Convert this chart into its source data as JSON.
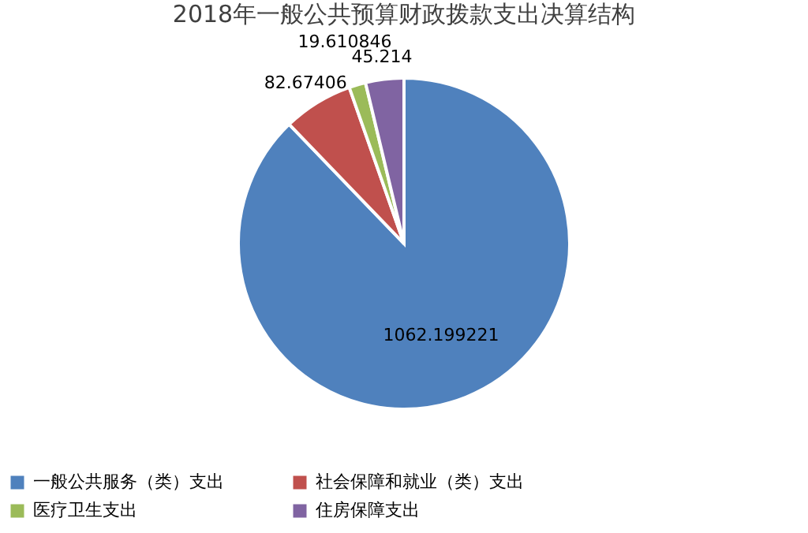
{
  "chart_data": {
    "type": "pie",
    "title": "2018年一般公共预算财政拨款支出决算结构",
    "categories": [
      "一般公共服务（类）支出",
      "社会保障和就业（类）支出",
      "医疗卫生支出",
      "住房保障支出"
    ],
    "values": [
      1062.199221,
      82.67406,
      19.610846,
      45.214
    ],
    "colors": [
      "#4f81bd",
      "#c0504d",
      "#9bbb59",
      "#8064a2"
    ],
    "data_labels": true,
    "legend": "bottom"
  }
}
